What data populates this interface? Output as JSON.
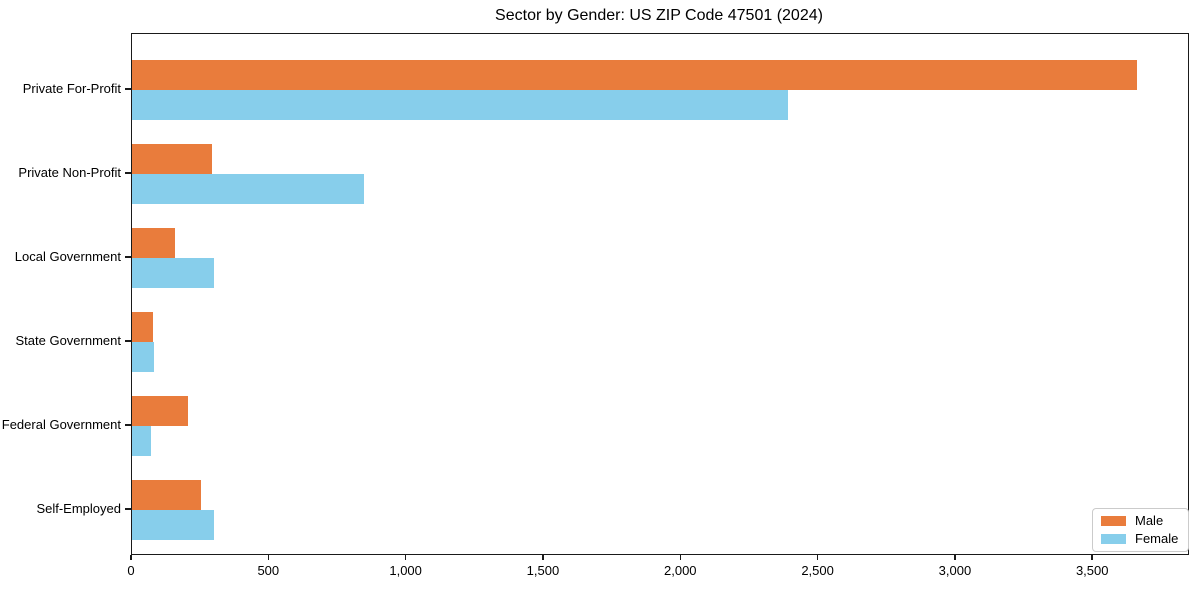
{
  "chart_data": {
    "type": "bar",
    "orientation": "horizontal",
    "title": "Sector by Gender: US ZIP Code 47501 (2024)",
    "categories": [
      "Private For-Profit",
      "Private Non-Profit",
      "Local Government",
      "State Government",
      "Federal Government",
      "Self-Employed"
    ],
    "series": [
      {
        "name": "Male",
        "color": "#E97C3C",
        "values": [
          3660,
          290,
          155,
          75,
          205,
          250
        ]
      },
      {
        "name": "Female",
        "color": "#87CEEB",
        "values": [
          2390,
          845,
          300,
          80,
          70,
          300
        ]
      }
    ],
    "xlabel": "",
    "ylabel": "",
    "xlim": [
      0,
      3845
    ],
    "xticks": [
      0,
      500,
      1000,
      1500,
      2000,
      2500,
      3000,
      3500
    ],
    "xtick_labels": [
      "0",
      "500",
      "1,000",
      "1,500",
      "2,000",
      "2,500",
      "3,000",
      "3,500"
    ],
    "grid": false,
    "legend": {
      "position": "lower right"
    }
  },
  "colors": {
    "axis": "#1a1a1a",
    "text": "#000000",
    "background": "#ffffff",
    "legend_border": "#cbcbcb"
  }
}
